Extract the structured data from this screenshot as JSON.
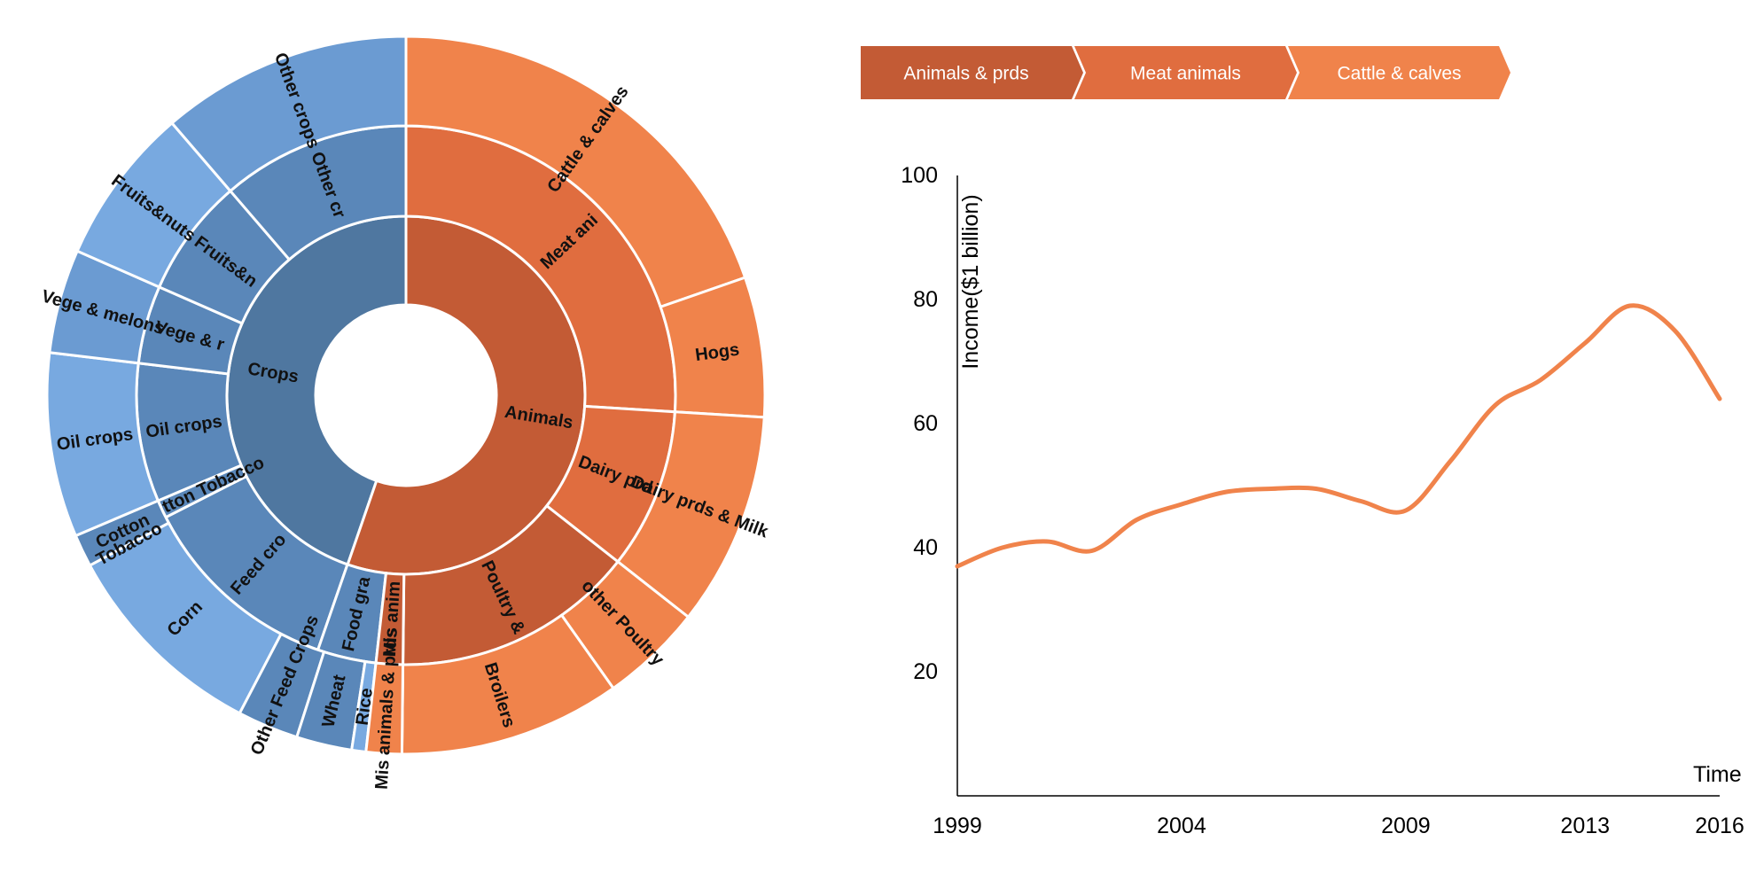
{
  "breadcrumb": {
    "items": [
      {
        "label": "Animals & prds",
        "color": "#c35b35"
      },
      {
        "label": "Meat animals",
        "color": "#e06d3f"
      },
      {
        "label": "Cattle & calves",
        "color": "#f0834b"
      }
    ]
  },
  "chart_data": [
    {
      "type": "sunburst",
      "rings": [
        [
          {
            "label": "Crops",
            "value": 0.4472,
            "color": "#4f77a0"
          },
          {
            "label": "Animals",
            "value": 0.5528,
            "color": "#c35b35"
          }
        ],
        [
          {
            "label": "Feed cro",
            "value": 0.1222,
            "color": "#5a87b9"
          },
          {
            "label": "Cotton Tobacco",
            "value": 0.0108,
            "color": "#5a87b9"
          },
          {
            "label": "Oil crops",
            "value": 0.083,
            "color": "#5a87b9"
          },
          {
            "label": "Vege & r",
            "value": 0.0468,
            "color": "#5a87b9"
          },
          {
            "label": "Fruits&n",
            "value": 0.0712,
            "color": "#5a87b9"
          },
          {
            "label": "Other cr",
            "value": 0.078,
            "color": "#5a87b9"
          },
          {
            "label": "Food gra",
            "value": 0.0352,
            "color": "#5a87b9"
          },
          {
            "label": "Meat ani",
            "value": 0.2598,
            "color": "#e06d3f"
          },
          {
            "label": "Dairy prd",
            "value": 0.0962,
            "color": "#e06d3f"
          },
          {
            "label": "Poultry &",
            "value": 0.1458,
            "color": "#c35b35"
          },
          {
            "label": "Mis anim",
            "value": 0.051,
            "color": "#c35b35"
          }
        ],
        [
          {
            "label": "Corn",
            "value": 0.0947,
            "color": "#78a9e0"
          },
          {
            "label": "Other Feed Crops",
            "value": 0.0275,
            "color": "#5a87b9"
          },
          {
            "label": "Cotton",
            "value": 0.0108,
            "color": "#5a87b9"
          },
          {
            "label": "Tobacco",
            "value": 0.0,
            "color": "#5a87b9"
          },
          {
            "label": "Oil crops",
            "value": 0.083,
            "color": "#78a9e0"
          },
          {
            "label": "Vege & melons",
            "value": 0.0468,
            "color": "#6b9bd2"
          },
          {
            "label": "Fruits&nuts",
            "value": 0.0712,
            "color": "#78a9e0"
          },
          {
            "label": "Other crops",
            "value": 0.078,
            "color": "#6b9bd2"
          },
          {
            "label": "Wheat",
            "value": 0.025,
            "color": "#5a87b9"
          },
          {
            "label": "Rice",
            "value": 0.0064,
            "color": "#78a9e0"
          },
          {
            "label": "Cattle & calves",
            "value": 0.1968,
            "color": "#f0834b"
          },
          {
            "label": "Hogs",
            "value": 0.063,
            "color": "#f0834b"
          },
          {
            "label": "Dairy prds & Milk",
            "value": 0.0962,
            "color": "#f0834b"
          },
          {
            "label": "other Poultry",
            "value": 0.046,
            "color": "#f0834b"
          },
          {
            "label": "Broilers",
            "value": 0.0998,
            "color": "#f0834b"
          },
          {
            "label": "Mis animals & prds",
            "value": 0.051,
            "color": "#f0834b"
          }
        ]
      ]
    },
    {
      "type": "line",
      "xlabel": "Time",
      "ylabel": "Income($1 billion)",
      "ylim": [
        0,
        100
      ],
      "xlim": [
        1999,
        2016
      ],
      "y_ticks": [
        20,
        40,
        60,
        80,
        100
      ],
      "x_ticks": [
        "1999",
        "2004",
        "2009",
        "2013",
        "2016"
      ],
      "series": [
        {
          "color": "#f0834b",
          "x": [
            1999,
            2000,
            2001,
            2002,
            2003,
            2004,
            2005,
            2006,
            2007,
            2008,
            2009,
            2010,
            2011,
            2012,
            2013,
            2014,
            2015,
            2016
          ],
          "y": [
            37,
            40,
            41,
            39.5,
            44.5,
            47,
            49,
            49.5,
            49.5,
            47.5,
            46,
            54,
            63,
            67,
            73,
            79,
            75,
            64
          ]
        }
      ]
    }
  ]
}
